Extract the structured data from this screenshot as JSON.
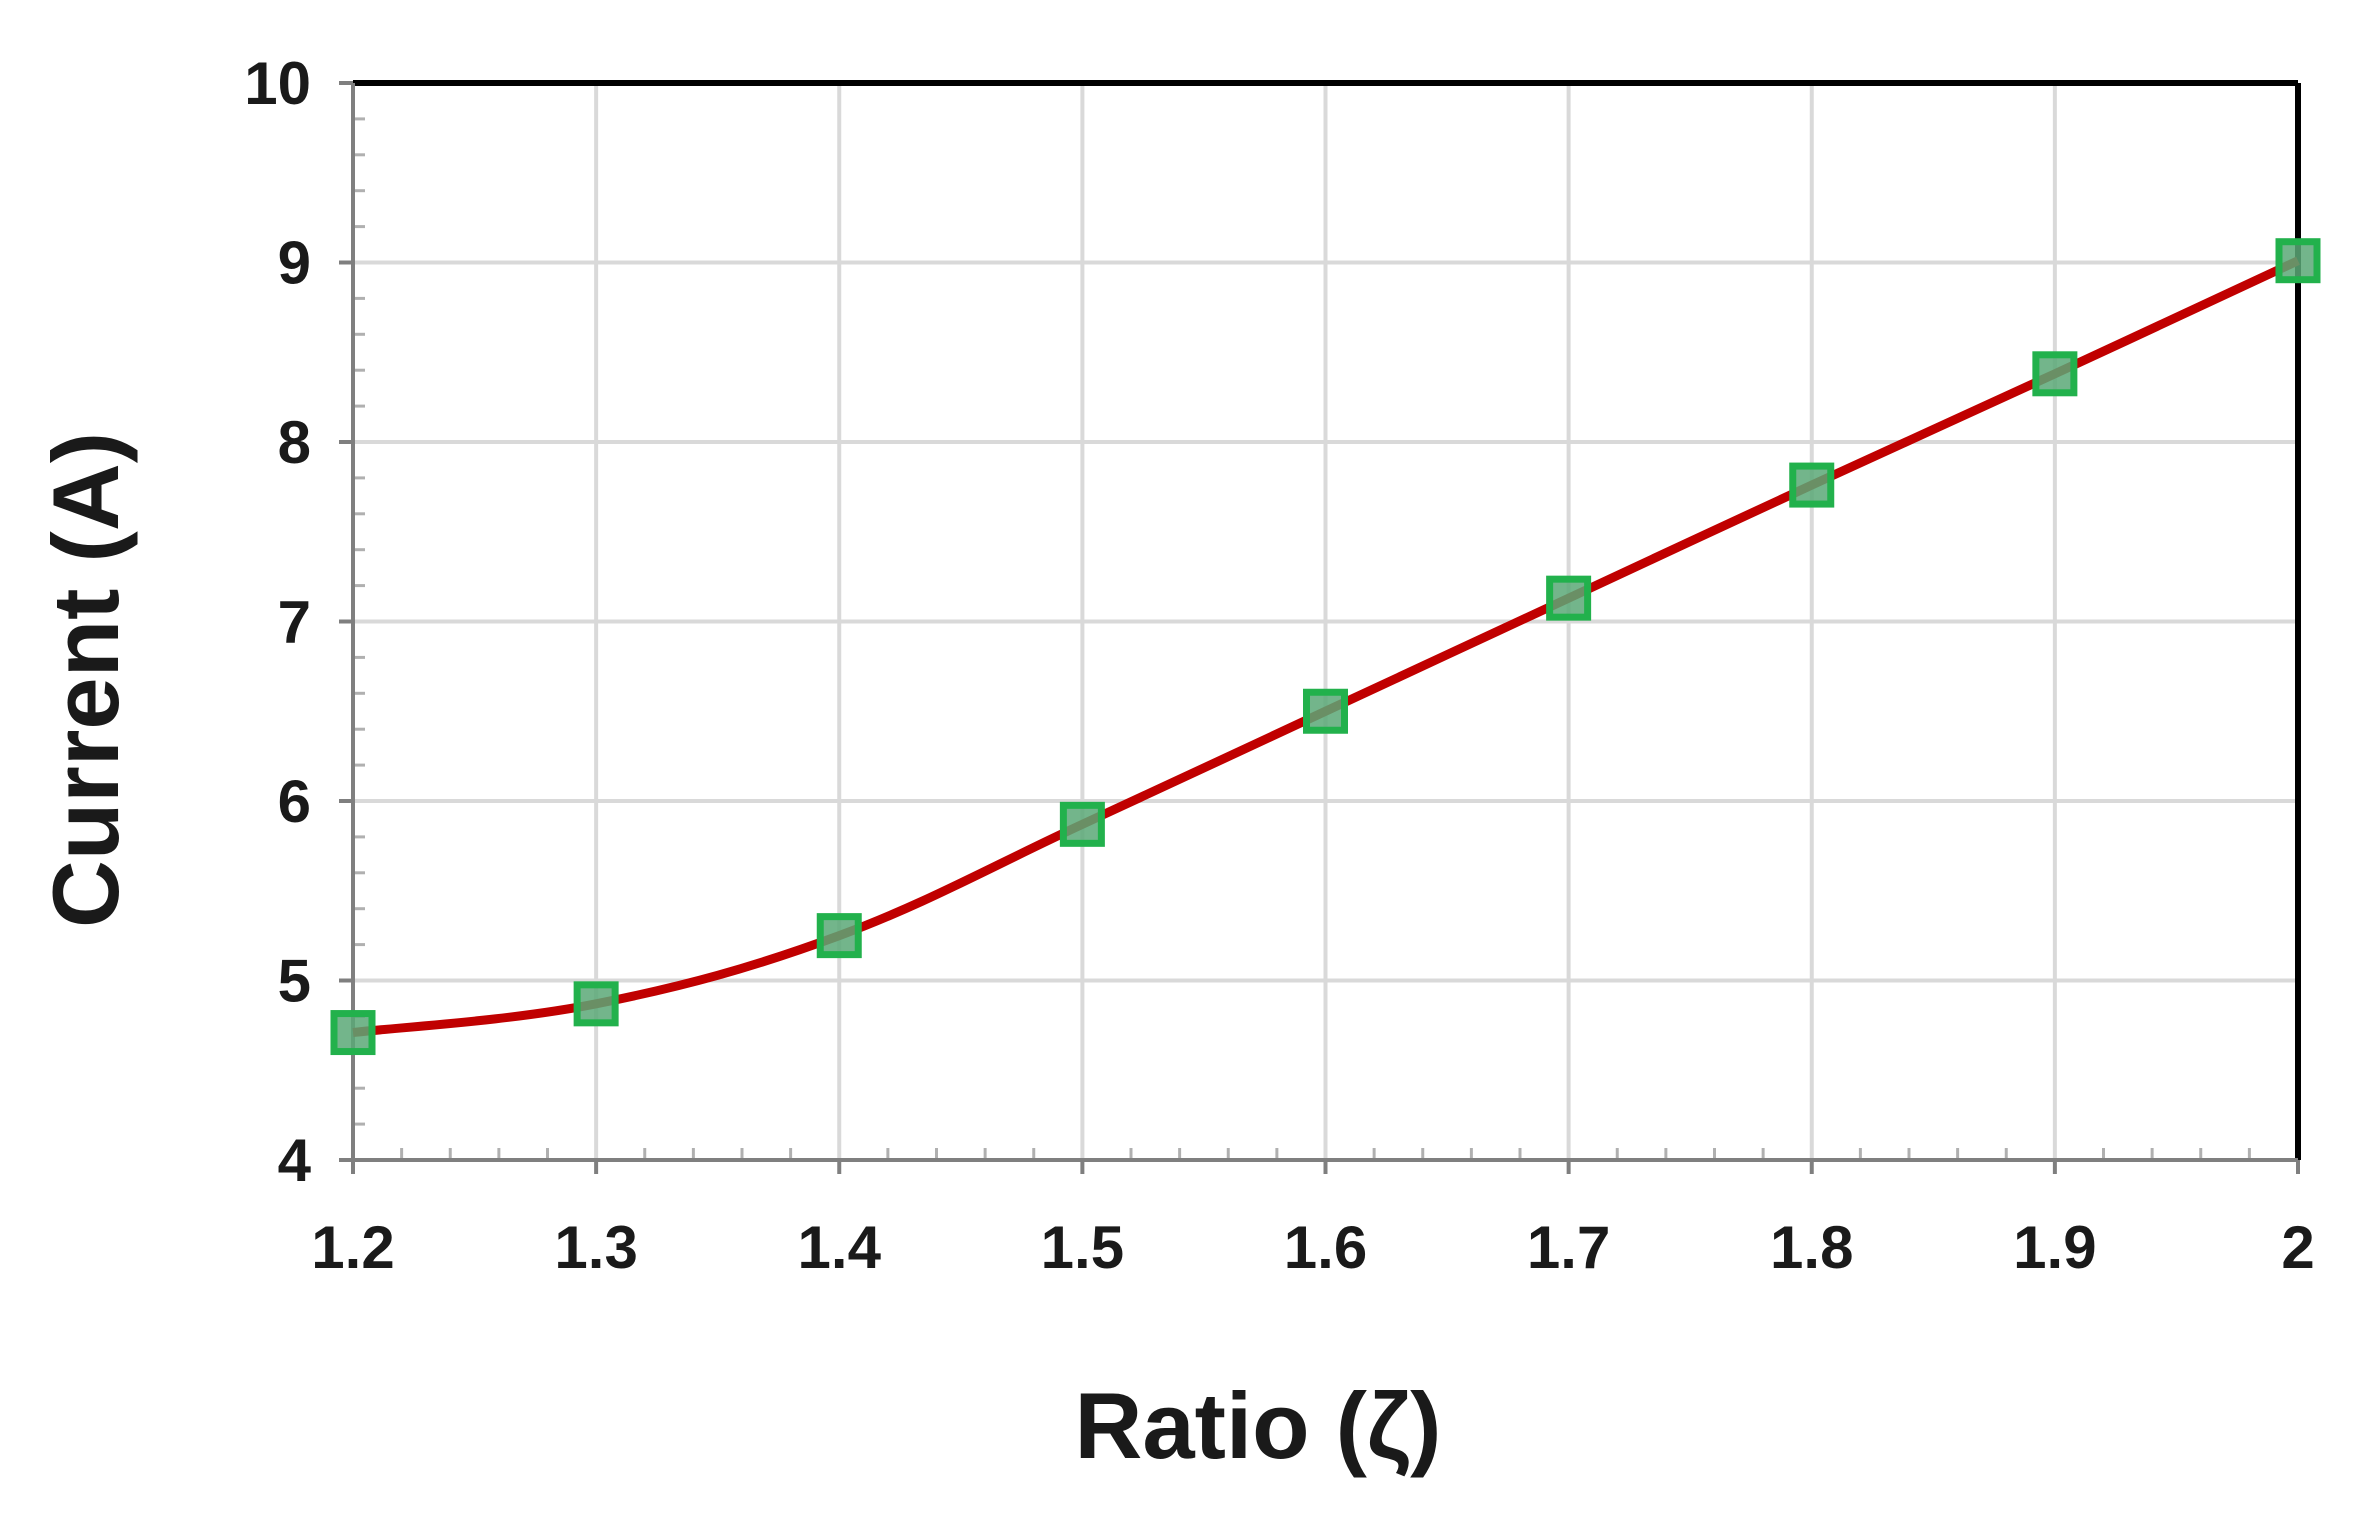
{
  "chart_data": {
    "type": "line",
    "title": "",
    "xlabel": "Ratio (ζ)",
    "ylabel": "Current (A)",
    "xlim": [
      1.2,
      2.0
    ],
    "ylim": [
      4,
      10
    ],
    "x_ticks": [
      "1.2",
      "1.3",
      "1.4",
      "1.5",
      "1.6",
      "1.7",
      "1.8",
      "1.9",
      "2"
    ],
    "y_ticks": [
      "4",
      "5",
      "6",
      "7",
      "8",
      "9",
      "10"
    ],
    "x_tick_values": [
      1.2,
      1.3,
      1.4,
      1.5,
      1.6,
      1.7,
      1.8,
      1.9,
      2.0
    ],
    "y_tick_values": [
      4,
      5,
      6,
      7,
      8,
      9,
      10
    ],
    "grid": true,
    "legend": "none",
    "series": [
      {
        "x": [
          1.2,
          1.3,
          1.4,
          1.5,
          1.6,
          1.7,
          1.8,
          1.9,
          2.0
        ],
        "y": [
          4.71,
          4.87,
          5.25,
          5.87,
          6.5,
          7.13,
          7.76,
          8.38,
          9.01
        ],
        "line_color": "#c00000",
        "marker": "square",
        "marker_fill": "#5aa877",
        "marker_edge": "#22b14c"
      }
    ]
  }
}
